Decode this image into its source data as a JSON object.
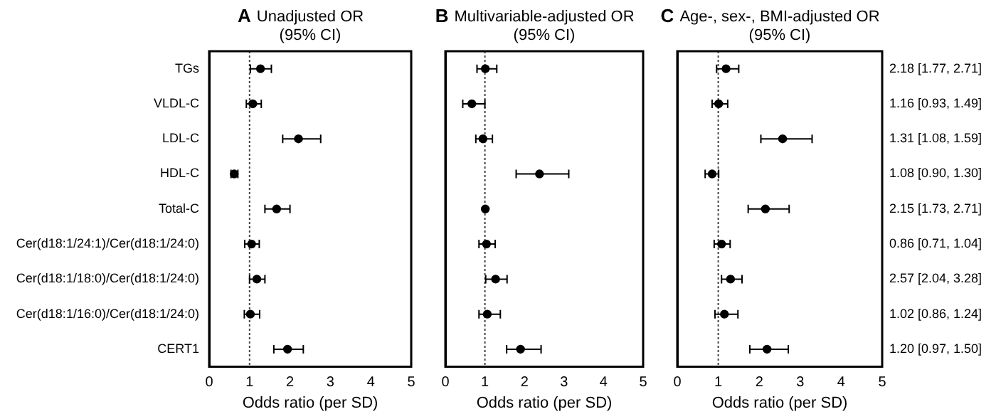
{
  "chart_data": [
    {
      "type": "scatter",
      "orientation": "horizontal",
      "title": "Unadjusted OR\n(95% CI)",
      "xlabel": "Odds ratio (per SD)",
      "annotations": [
        "A"
      ],
      "categories": [
        "TGs",
        "VLDL-C",
        "LDL-C",
        "HDL-C",
        "Total-C",
        "Cer(d18:1/24:1)/Cer(d18:1/24:0)",
        "Cer(d18:1/18:0)/Cer(d18:1/24:0)",
        "Cer(d18:1/16:0)/Cer(d18:1/24:0)",
        "CERT1"
      ],
      "series": [
        {
          "color": "#000000",
          "values": [
            1.27,
            1.08,
            2.21,
            0.62,
            1.67,
            1.05,
            1.18,
            1.02,
            1.94
          ],
          "errors": [
            [
              1.02,
              1.54
            ],
            [
              0.92,
              1.29
            ],
            [
              1.82,
              2.76
            ],
            [
              0.54,
              0.71
            ],
            [
              1.38,
              2.0
            ],
            [
              0.88,
              1.24
            ],
            [
              1.0,
              1.38
            ],
            [
              0.87,
              1.25
            ],
            [
              1.6,
              2.33
            ]
          ]
        }
      ],
      "xlim": [
        0,
        5
      ],
      "xticks": [
        0,
        1,
        2,
        3,
        4,
        5
      ],
      "ref_lines": [
        {
          "axis": "x",
          "value": 1,
          "line_style": "dotted"
        }
      ],
      "marker": "circle",
      "legend": false,
      "grid": false
    },
    {
      "type": "scatter",
      "orientation": "horizontal",
      "title": "Multivariable-adjusted OR\n(95% CI)",
      "xlabel": "Odds ratio (per SD)",
      "annotations": [
        "B"
      ],
      "series": [
        {
          "color": "#000000",
          "values": [
            1.01,
            0.67,
            0.95,
            2.38,
            1.01,
            1.04,
            1.27,
            1.06,
            1.9
          ],
          "errors": [
            [
              0.8,
              1.3
            ],
            [
              0.44,
              1.0
            ],
            [
              0.77,
              1.19
            ],
            [
              1.79,
              3.12
            ],
            null,
            [
              0.85,
              1.26
            ],
            [
              1.02,
              1.56
            ],
            [
              0.85,
              1.39
            ],
            [
              1.55,
              2.42
            ]
          ]
        }
      ],
      "xlim": [
        0,
        5
      ],
      "xticks": [
        0,
        1,
        2,
        3,
        4,
        5
      ],
      "ref_lines": [
        {
          "axis": "x",
          "value": 1,
          "line_style": "dotted"
        }
      ],
      "marker": "circle",
      "legend": false,
      "grid": false,
      "tick_labels": "x"
    },
    {
      "type": "scatter",
      "orientation": "horizontal",
      "title": "Age-, sex-, BMI-adjusted OR\n(95% CI)",
      "xlabel": "Odds ratio (per SD)",
      "annotations": [
        "C",
        "2.18 [1.77, 2.71]",
        "1.16 [0.93, 1.49]",
        "1.31 [1.08, 1.59]",
        "1.08 [0.90, 1.30]",
        "2.15 [1.73, 2.71]",
        "0.86 [0.71, 1.04]",
        "2.57 [2.04, 3.28]",
        "1.02 [0.86, 1.24]",
        "1.20 [0.97, 1.50]"
      ],
      "series": [
        {
          "color": "#000000",
          "values": [
            1.19,
            1.01,
            2.57,
            0.85,
            2.15,
            1.08,
            1.3,
            1.15,
            2.19
          ],
          "errors": [
            [
              0.96,
              1.5
            ],
            [
              0.85,
              1.23
            ],
            [
              2.04,
              3.29
            ],
            [
              0.68,
              1.01
            ],
            [
              1.73,
              2.73
            ],
            [
              0.9,
              1.29
            ],
            [
              1.08,
              1.58
            ],
            [
              0.92,
              1.48
            ],
            [
              1.77,
              2.71
            ]
          ]
        }
      ],
      "xlim": [
        0,
        5
      ],
      "xticks": [
        0,
        1,
        2,
        3,
        4,
        5
      ],
      "ref_lines": [
        {
          "axis": "x",
          "value": 1,
          "line_style": "dotted"
        }
      ],
      "marker": "circle",
      "legend": false,
      "grid": false,
      "tick_labels": "x"
    }
  ]
}
